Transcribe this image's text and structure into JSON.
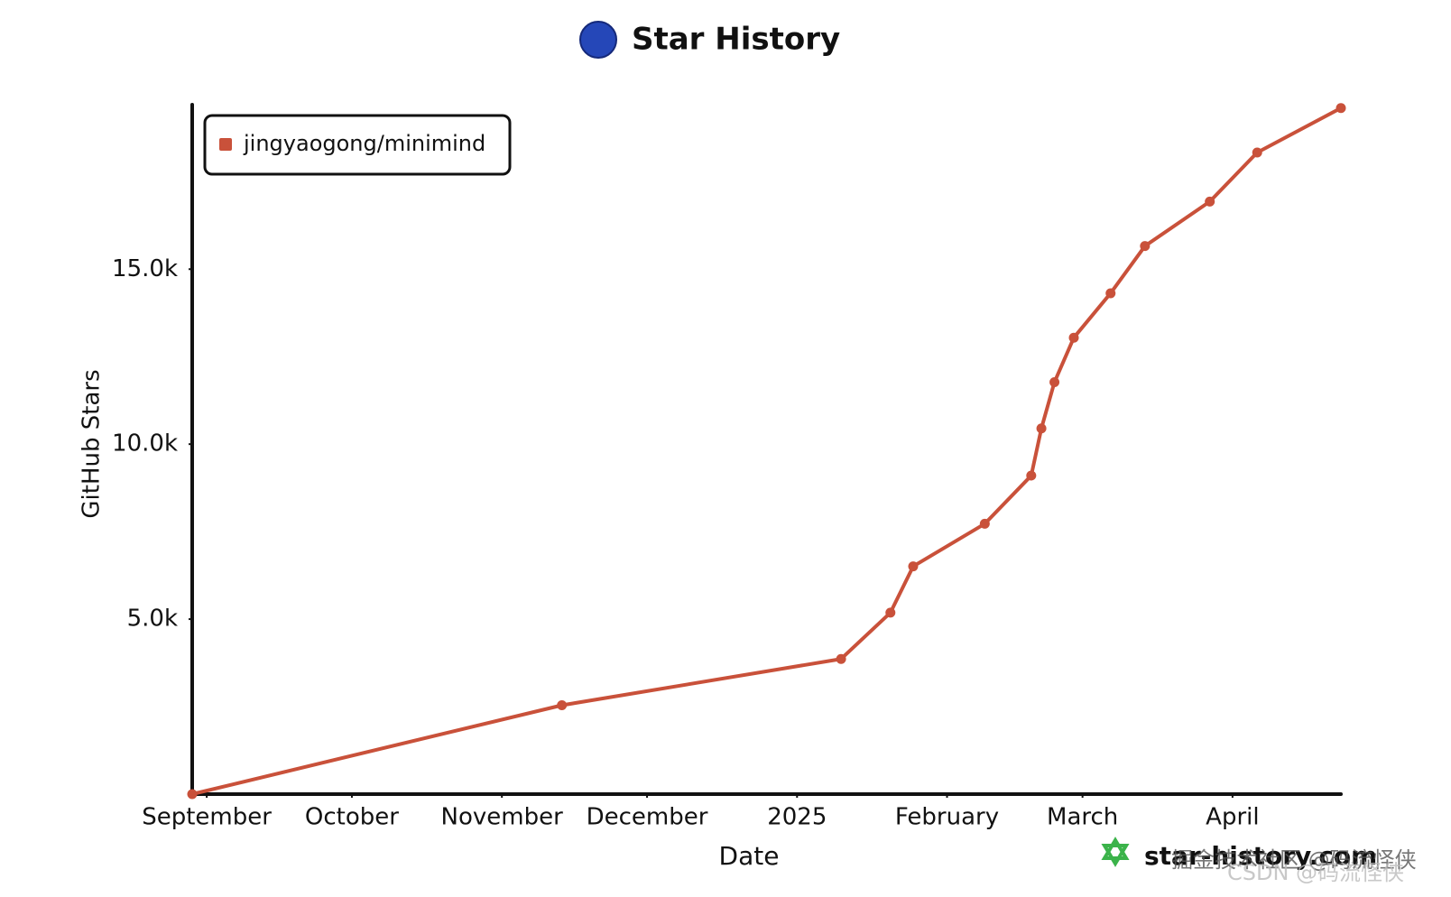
{
  "chart_data": {
    "type": "line",
    "title": "Star History",
    "x_label": "Date",
    "y_label": "GitHub Stars",
    "x": [
      0,
      76.4,
      134.1,
      144.3,
      149,
      163.8,
      173.4,
      175.5,
      178.2,
      182.2,
      189.8,
      196.9,
      210.3,
      220.1,
      237.4
    ],
    "series": [
      {
        "name": "jingyaogong/minimind",
        "color": "#c9513a",
        "values": [
          0,
          2540,
          3862,
          5185,
          6508,
          7725,
          9101,
          10450,
          11772,
          13042,
          14312,
          15661,
          16931,
          18333,
          19603
        ]
      }
    ],
    "xlim": [
      0,
      237.4
    ],
    "xticks": [
      {
        "value": 3,
        "label": "September"
      },
      {
        "value": 33,
        "label": "October"
      },
      {
        "value": 64,
        "label": "November"
      },
      {
        "value": 94,
        "label": "December"
      },
      {
        "value": 125,
        "label": "2025"
      },
      {
        "value": 156,
        "label": "February"
      },
      {
        "value": 184,
        "label": "March"
      },
      {
        "value": 215,
        "label": "April"
      }
    ],
    "ylim": [
      0,
      19700
    ],
    "yticks": [
      {
        "value": 5000,
        "label": "5.0k"
      },
      {
        "value": 10000,
        "label": "10.0k"
      },
      {
        "value": 15000,
        "label": "15.0k"
      }
    ],
    "legend": "top-left",
    "watermark": "star-history.com",
    "overlay_texts": [
      "掘金技术社区 @码流怪侠",
      "CSDN @码流怪侠"
    ]
  }
}
